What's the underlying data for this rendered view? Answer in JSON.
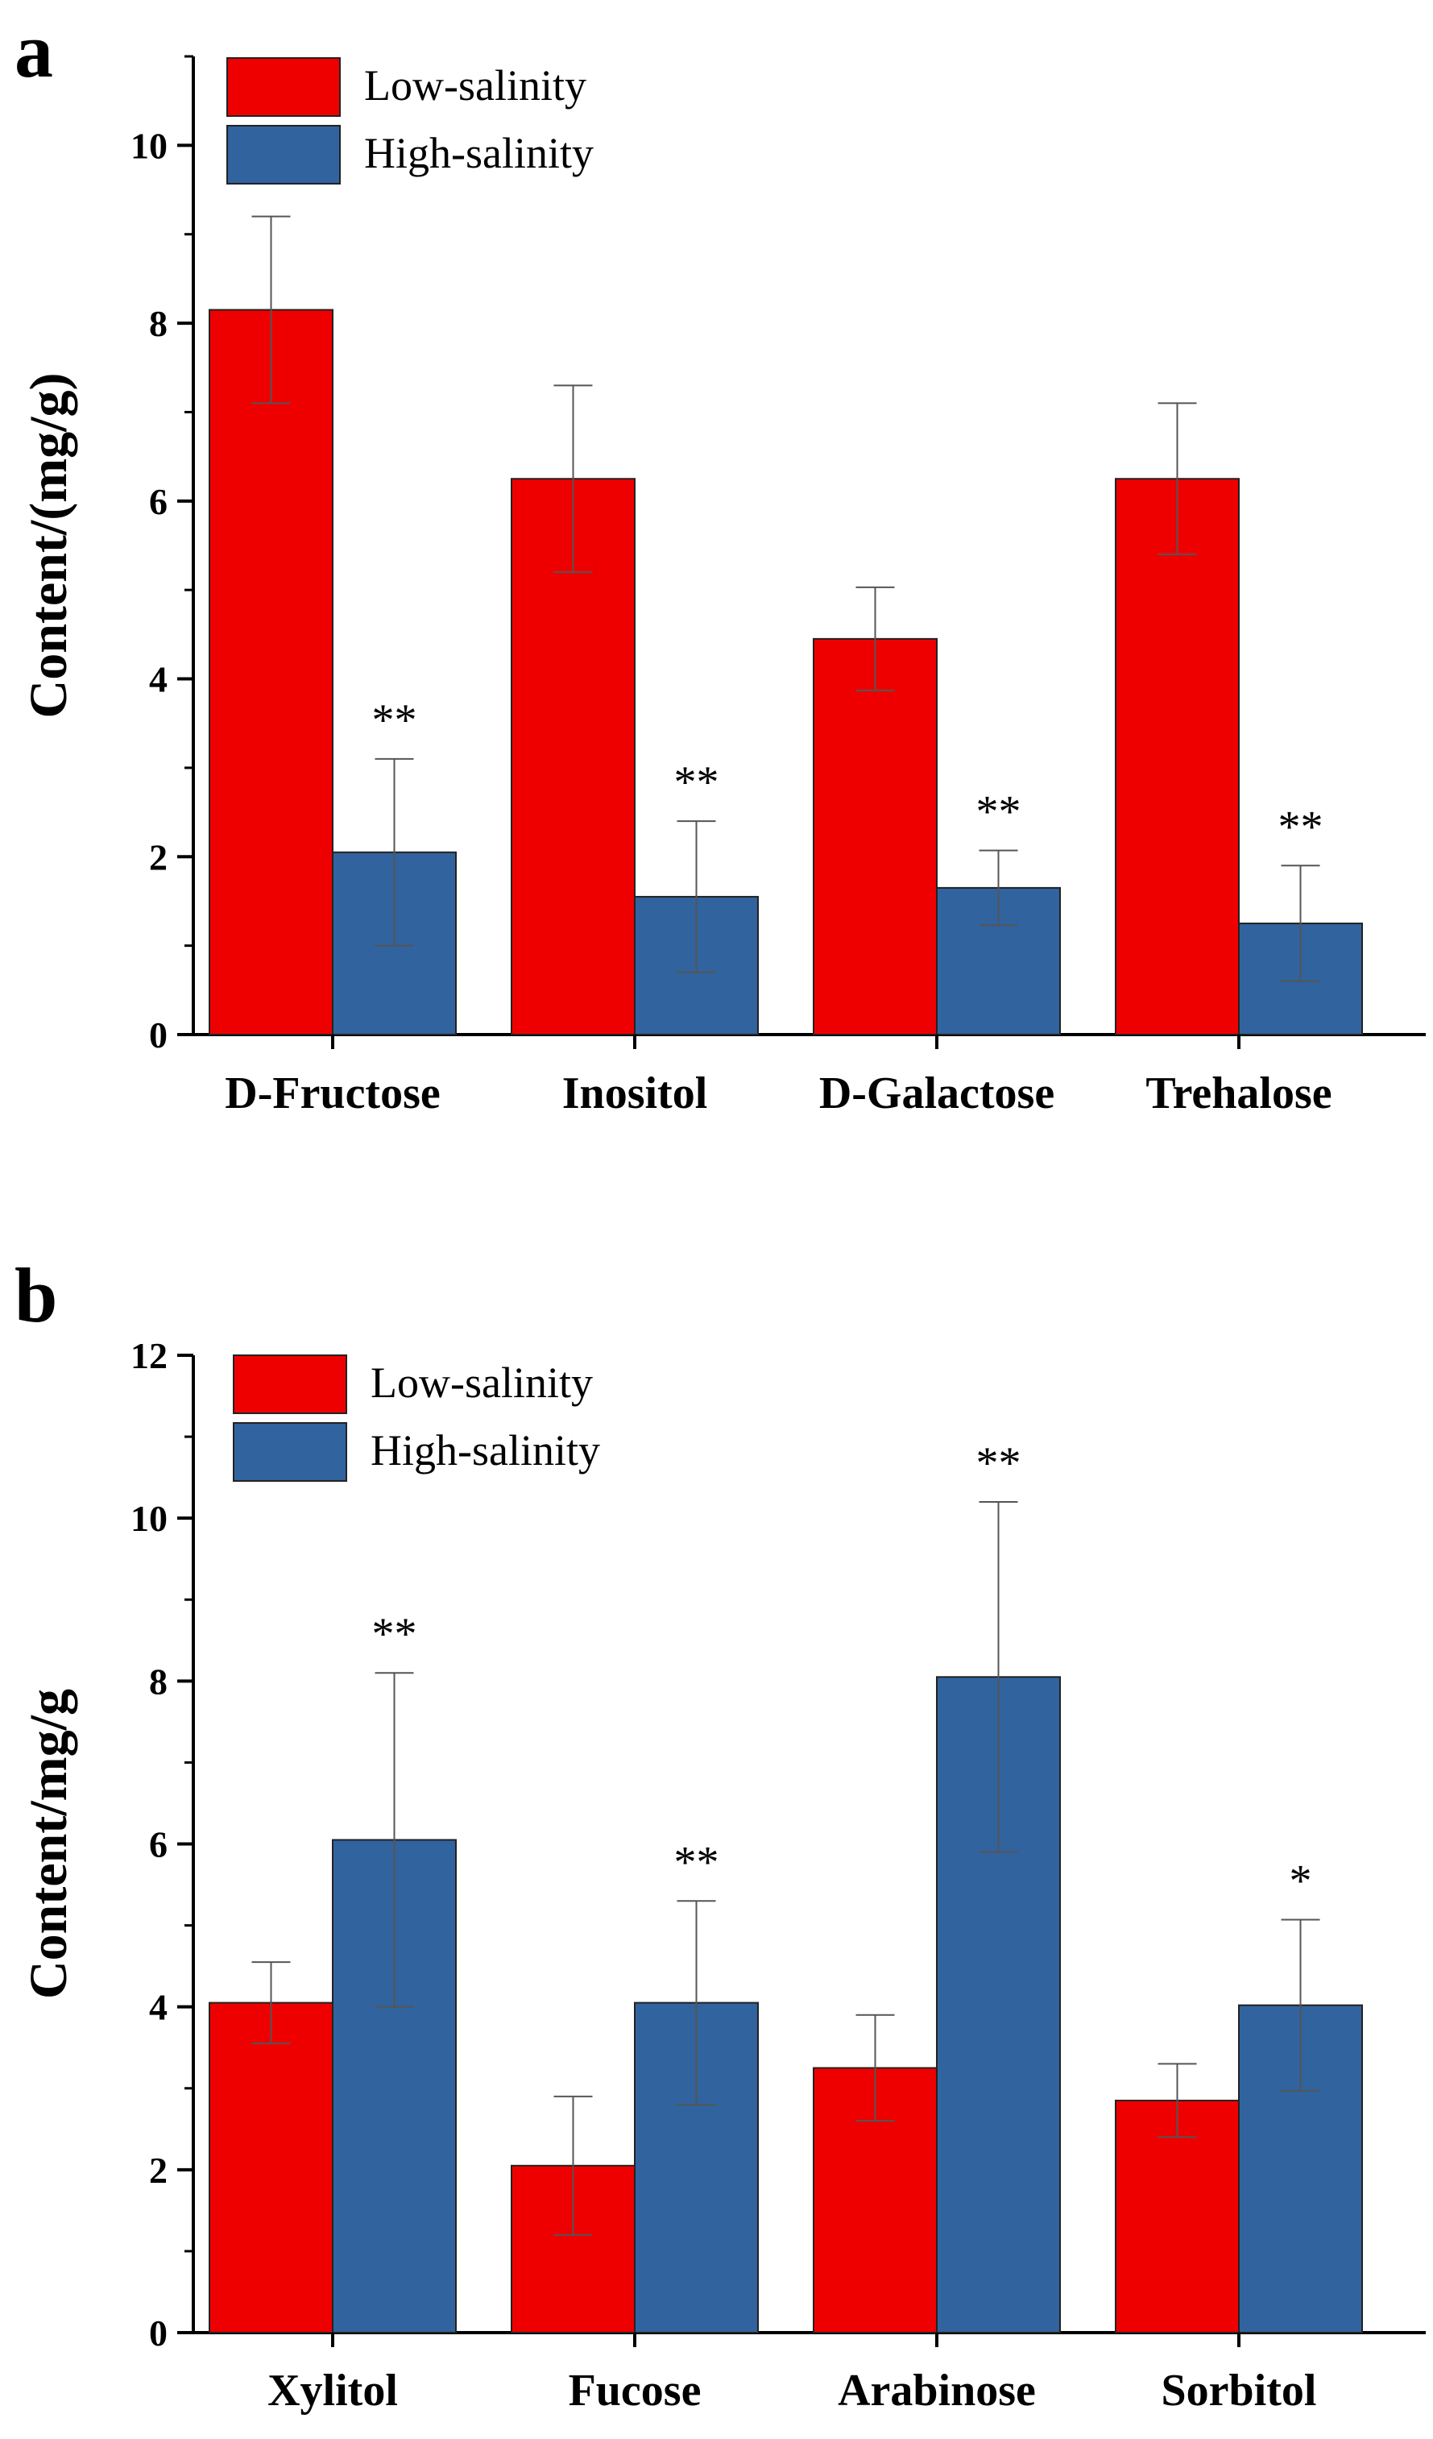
{
  "chart_data": [
    {
      "panel": "a",
      "type": "bar",
      "ylabel": "Content/(mg/g)",
      "xlabel": "",
      "ylim": [
        0,
        11
      ],
      "yticks": [
        0,
        2,
        4,
        6,
        8,
        10
      ],
      "categories": [
        "D-Fructose",
        "Inositol",
        "D-Galactose",
        "Trehalose"
      ],
      "series": [
        {
          "name": "Low-salinity",
          "color": "#ee0000",
          "values": [
            8.15,
            6.25,
            4.45,
            6.25
          ],
          "errors": [
            1.05,
            1.05,
            0.58,
            0.85
          ]
        },
        {
          "name": "High-salinity",
          "color": "#31639e",
          "values": [
            2.05,
            1.55,
            1.65,
            1.25
          ],
          "errors": [
            1.05,
            0.85,
            0.42,
            0.65
          ]
        }
      ],
      "significance": [
        "**",
        "**",
        "**",
        "**"
      ],
      "legend_position": "top-left"
    },
    {
      "panel": "b",
      "type": "bar",
      "ylabel": "Content/mg/g",
      "xlabel": "",
      "ylim": [
        0,
        12
      ],
      "yticks": [
        0,
        2,
        4,
        6,
        8,
        10,
        12
      ],
      "categories": [
        "Xylitol",
        "Fucose",
        "Arabinose",
        "Sorbitol"
      ],
      "series": [
        {
          "name": "Low-salinity",
          "color": "#ee0000",
          "values": [
            4.05,
            2.05,
            3.25,
            2.85
          ],
          "errors": [
            0.5,
            0.85,
            0.65,
            0.45
          ]
        },
        {
          "name": "High-salinity",
          "color": "#31639e",
          "values": [
            6.05,
            4.05,
            8.05,
            4.02
          ],
          "errors": [
            2.05,
            1.25,
            2.15,
            1.05
          ]
        }
      ],
      "significance": [
        "**",
        "**",
        "**",
        "*"
      ],
      "legend_position": "top-left"
    }
  ]
}
